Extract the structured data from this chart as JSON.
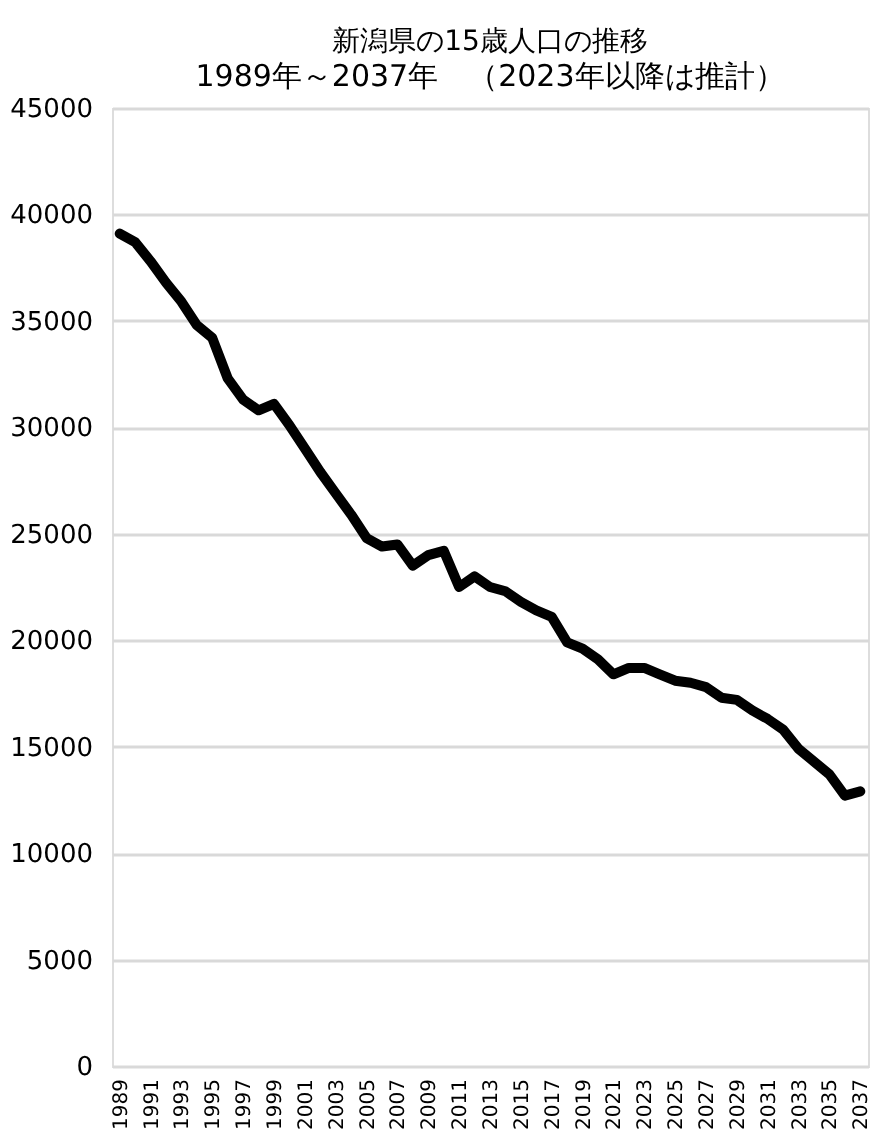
{
  "chart_data": {
    "type": "line",
    "title": "新潟県の15歳人口の推移",
    "subtitle": "1989年～2037年　（2023年以降は推計）",
    "categories": [
      "1989",
      null,
      "1991",
      null,
      "1993",
      null,
      "1995",
      null,
      "1997",
      null,
      "1999",
      null,
      "2001",
      null,
      "2003",
      null,
      "2005",
      null,
      "2007",
      null,
      "2009",
      null,
      "2011",
      null,
      "2013",
      null,
      "2015",
      null,
      "2017",
      null,
      "2019",
      null,
      "2021",
      null,
      "2023",
      null,
      "2025",
      null,
      "2027",
      null,
      "2029",
      null,
      "2031",
      null,
      "2033",
      null,
      "2035",
      null,
      "2037"
    ],
    "series": [
      {
        "color": "#000000",
        "values": [
          39100,
          38700,
          37800,
          36800,
          35900,
          34800,
          34200,
          32300,
          31300,
          30800,
          31100,
          30100,
          29000,
          27900,
          26900,
          25900,
          24800,
          24400,
          24500,
          23500,
          24000,
          24200,
          22500,
          23000,
          22500,
          22300,
          21800,
          21400,
          21100,
          19900,
          19600,
          19100,
          18400,
          18700,
          18700,
          18400,
          18100,
          18000,
          17800,
          17300,
          17200,
          16700,
          16300,
          15800,
          14900,
          14300,
          13700,
          12700,
          12900
        ]
      }
    ],
    "ylim": [
      0,
      45000
    ],
    "yticks": [
      0,
      5000,
      10000,
      15000,
      20000,
      25000,
      30000,
      35000,
      40000,
      45000
    ],
    "grid": "y",
    "marker": "none",
    "line_style": "solid"
  }
}
